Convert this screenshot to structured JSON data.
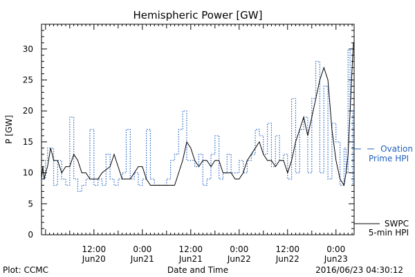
{
  "chart_data": {
    "type": "line",
    "title": "Hemispheric Power [GW]",
    "ylabel": "P [GW]",
    "xlabel": "Date and Time",
    "ylim": [
      0,
      34
    ],
    "y_ticks": [
      0,
      5,
      10,
      15,
      20,
      25,
      30
    ],
    "x_ticks": [
      {
        "time": "2016-06-20 12:00",
        "line1": "12:00",
        "line2": "Jun20"
      },
      {
        "time": "2016-06-21 00:00",
        "line1": "0:00",
        "line2": "Jun21"
      },
      {
        "time": "2016-06-21 12:00",
        "line1": "12:00",
        "line2": "Jun21"
      },
      {
        "time": "2016-06-22 00:00",
        "line1": "0:00",
        "line2": "Jun22"
      },
      {
        "time": "2016-06-22 12:00",
        "line1": "12:00",
        "line2": "Jun22"
      },
      {
        "time": "2016-06-23 00:00",
        "line1": "0:00",
        "line2": "Jun23"
      }
    ],
    "xlim": [
      "2016-06-19 23:00",
      "2016-06-23 04:30"
    ],
    "series": [
      {
        "name": "Ovation Prime HPI",
        "legend_line1": "Ovation",
        "legend_line2": "Prime HPI",
        "color": "#1f5fbf",
        "style": "dotted-step",
        "points": [
          [
            "2016-06-19 23:00",
            9
          ],
          [
            "2016-06-20 00:00",
            12
          ],
          [
            "2016-06-20 00:30",
            14
          ],
          [
            "2016-06-20 02:00",
            8
          ],
          [
            "2016-06-20 03:00",
            12
          ],
          [
            "2016-06-20 04:00",
            9
          ],
          [
            "2016-06-20 05:00",
            8
          ],
          [
            "2016-06-20 06:00",
            19
          ],
          [
            "2016-06-20 07:00",
            9
          ],
          [
            "2016-06-20 08:00",
            7
          ],
          [
            "2016-06-20 09:00",
            8
          ],
          [
            "2016-06-20 10:00",
            9
          ],
          [
            "2016-06-20 11:00",
            17
          ],
          [
            "2016-06-20 12:00",
            8
          ],
          [
            "2016-06-20 13:00",
            9
          ],
          [
            "2016-06-20 14:00",
            8
          ],
          [
            "2016-06-20 15:00",
            13
          ],
          [
            "2016-06-20 16:00",
            9
          ],
          [
            "2016-06-20 17:00",
            8
          ],
          [
            "2016-06-20 18:00",
            9
          ],
          [
            "2016-06-20 19:00",
            10
          ],
          [
            "2016-06-20 20:00",
            17
          ],
          [
            "2016-06-20 21:00",
            9
          ],
          [
            "2016-06-20 22:00",
            10
          ],
          [
            "2016-06-20 23:00",
            8
          ],
          [
            "2016-06-21 00:00",
            9
          ],
          [
            "2016-06-21 01:00",
            17
          ],
          [
            "2016-06-21 02:00",
            9
          ],
          [
            "2016-06-21 03:00",
            8
          ],
          [
            "2016-06-21 06:00",
            9
          ],
          [
            "2016-06-21 07:00",
            12
          ],
          [
            "2016-06-21 08:00",
            13
          ],
          [
            "2016-06-21 09:00",
            17
          ],
          [
            "2016-06-21 10:00",
            20
          ],
          [
            "2016-06-21 11:00",
            12
          ],
          [
            "2016-06-21 13:00",
            11
          ],
          [
            "2016-06-21 14:00",
            13
          ],
          [
            "2016-06-21 15:00",
            8
          ],
          [
            "2016-06-21 16:00",
            9
          ],
          [
            "2016-06-21 17:00",
            13
          ],
          [
            "2016-06-21 18:00",
            16
          ],
          [
            "2016-06-21 19:00",
            9
          ],
          [
            "2016-06-21 20:00",
            10
          ],
          [
            "2016-06-21 21:00",
            13
          ],
          [
            "2016-06-21 22:00",
            10
          ],
          [
            "2016-06-22 00:00",
            12
          ],
          [
            "2016-06-22 01:00",
            10
          ],
          [
            "2016-06-22 02:00",
            12
          ],
          [
            "2016-06-22 03:00",
            13
          ],
          [
            "2016-06-22 04:00",
            17
          ],
          [
            "2016-06-22 05:00",
            16
          ],
          [
            "2016-06-22 06:00",
            13
          ],
          [
            "2016-06-22 07:00",
            18
          ],
          [
            "2016-06-22 08:00",
            11
          ],
          [
            "2016-06-22 09:00",
            16
          ],
          [
            "2016-06-22 10:00",
            12
          ],
          [
            "2016-06-22 11:00",
            13
          ],
          [
            "2016-06-22 12:00",
            9
          ],
          [
            "2016-06-22 13:00",
            22
          ],
          [
            "2016-06-22 14:00",
            10
          ],
          [
            "2016-06-22 15:00",
            17
          ],
          [
            "2016-06-22 16:00",
            19
          ],
          [
            "2016-06-22 17:00",
            10
          ],
          [
            "2016-06-22 18:00",
            22
          ],
          [
            "2016-06-22 19:00",
            28
          ],
          [
            "2016-06-22 20:00",
            10
          ],
          [
            "2016-06-22 21:00",
            24
          ],
          [
            "2016-06-22 22:00",
            9
          ],
          [
            "2016-06-22 23:00",
            18
          ],
          [
            "2016-06-23 00:00",
            15
          ],
          [
            "2016-06-23 01:00",
            8
          ],
          [
            "2016-06-23 02:00",
            14
          ],
          [
            "2016-06-23 02:30",
            10
          ],
          [
            "2016-06-23 03:00",
            30
          ],
          [
            "2016-06-23 03:30",
            20
          ],
          [
            "2016-06-23 04:10",
            8
          ]
        ]
      },
      {
        "name": "SWPC 5-min HPI",
        "legend_line1": "SWPC",
        "legend_line2": "5-min HPI",
        "color": "#000000",
        "style": "solid",
        "points": [
          [
            "2016-06-19 23:00",
            9
          ],
          [
            "2016-06-19 23:20",
            11
          ],
          [
            "2016-06-19 23:40",
            9
          ],
          [
            "2016-06-20 00:00",
            10
          ],
          [
            "2016-06-20 00:30",
            11
          ],
          [
            "2016-06-20 01:00",
            13
          ],
          [
            "2016-06-20 01:15",
            14
          ],
          [
            "2016-06-20 01:40",
            13
          ],
          [
            "2016-06-20 02:00",
            12
          ],
          [
            "2016-06-20 03:00",
            12
          ],
          [
            "2016-06-20 04:00",
            10
          ],
          [
            "2016-06-20 05:00",
            11
          ],
          [
            "2016-06-20 06:00",
            11
          ],
          [
            "2016-06-20 07:00",
            13
          ],
          [
            "2016-06-20 08:00",
            12
          ],
          [
            "2016-06-20 09:00",
            10
          ],
          [
            "2016-06-20 10:00",
            10
          ],
          [
            "2016-06-20 11:00",
            9
          ],
          [
            "2016-06-20 12:00",
            9
          ],
          [
            "2016-06-20 13:00",
            9
          ],
          [
            "2016-06-20 14:00",
            10
          ],
          [
            "2016-06-20 16:00",
            11
          ],
          [
            "2016-06-20 17:00",
            13
          ],
          [
            "2016-06-20 18:00",
            11
          ],
          [
            "2016-06-20 19:00",
            9
          ],
          [
            "2016-06-20 20:00",
            9
          ],
          [
            "2016-06-20 21:00",
            9
          ],
          [
            "2016-06-20 22:00",
            10
          ],
          [
            "2016-06-20 23:00",
            11
          ],
          [
            "2016-06-21 00:00",
            11
          ],
          [
            "2016-06-21 01:00",
            9
          ],
          [
            "2016-06-21 02:00",
            8
          ],
          [
            "2016-06-21 08:00",
            8
          ],
          [
            "2016-06-21 09:00",
            10
          ],
          [
            "2016-06-21 10:00",
            12
          ],
          [
            "2016-06-21 11:00",
            15
          ],
          [
            "2016-06-21 12:00",
            14
          ],
          [
            "2016-06-21 13:00",
            12
          ],
          [
            "2016-06-21 14:00",
            11
          ],
          [
            "2016-06-21 15:00",
            12
          ],
          [
            "2016-06-21 16:00",
            12
          ],
          [
            "2016-06-21 17:00",
            11
          ],
          [
            "2016-06-21 18:00",
            12
          ],
          [
            "2016-06-21 19:00",
            12
          ],
          [
            "2016-06-21 20:00",
            10
          ],
          [
            "2016-06-21 21:00",
            10
          ],
          [
            "2016-06-21 22:00",
            10
          ],
          [
            "2016-06-21 23:00",
            9
          ],
          [
            "2016-06-22 00:00",
            9
          ],
          [
            "2016-06-22 01:00",
            10
          ],
          [
            "2016-06-22 02:00",
            12
          ],
          [
            "2016-06-22 03:00",
            13
          ],
          [
            "2016-06-22 04:00",
            14
          ],
          [
            "2016-06-22 05:00",
            15
          ],
          [
            "2016-06-22 06:00",
            13
          ],
          [
            "2016-06-22 07:00",
            12
          ],
          [
            "2016-06-22 08:00",
            12
          ],
          [
            "2016-06-22 09:00",
            11
          ],
          [
            "2016-06-22 10:00",
            12
          ],
          [
            "2016-06-22 11:00",
            12
          ],
          [
            "2016-06-22 12:00",
            10
          ],
          [
            "2016-06-22 13:00",
            12
          ],
          [
            "2016-06-22 14:00",
            15
          ],
          [
            "2016-06-22 15:00",
            17
          ],
          [
            "2016-06-22 16:00",
            19
          ],
          [
            "2016-06-22 17:00",
            16
          ],
          [
            "2016-06-22 18:00",
            19
          ],
          [
            "2016-06-22 19:00",
            22
          ],
          [
            "2016-06-22 20:00",
            25
          ],
          [
            "2016-06-22 21:00",
            27
          ],
          [
            "2016-06-22 22:00",
            25
          ],
          [
            "2016-06-22 23:00",
            17
          ],
          [
            "2016-06-23 00:00",
            12
          ],
          [
            "2016-06-23 01:00",
            9
          ],
          [
            "2016-06-23 02:00",
            8
          ],
          [
            "2016-06-23 02:30",
            10
          ],
          [
            "2016-06-23 03:00",
            13
          ],
          [
            "2016-06-23 03:30",
            20
          ],
          [
            "2016-06-23 04:00",
            27
          ],
          [
            "2016-06-23 04:20",
            31
          ]
        ]
      }
    ],
    "legend": "right"
  },
  "footer": {
    "left": "Plot: CCMC",
    "center": "Date and Time",
    "right": "2016/06/23 04:30:12"
  }
}
